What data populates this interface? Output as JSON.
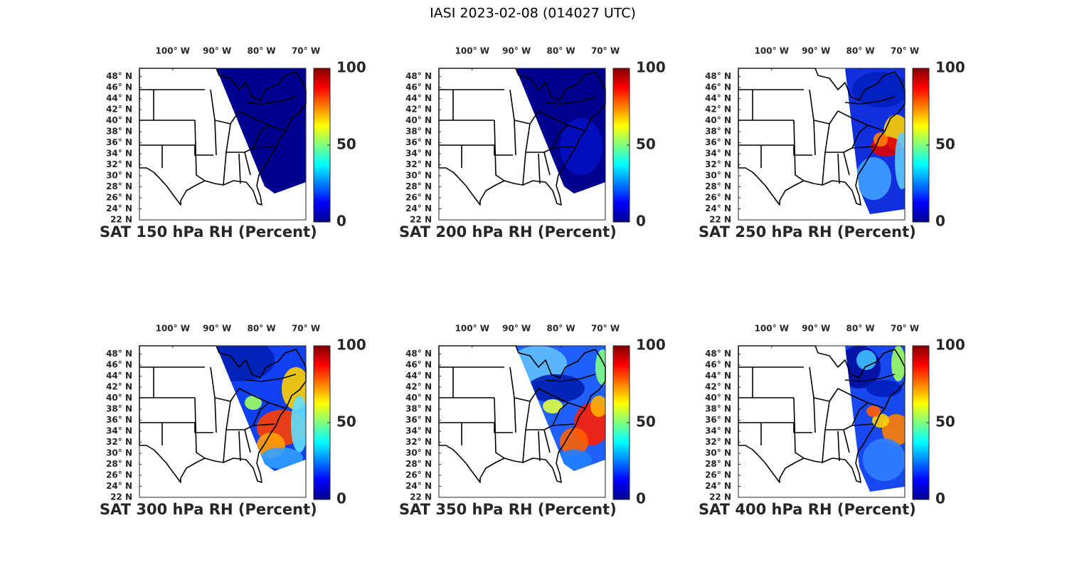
{
  "title": "IASI 2023-02-08 (014027 UTC)",
  "panels": [
    {
      "title": "SAT 150 hPa RH (Percent)"
    },
    {
      "title": "SAT 200 hPa RH (Percent)"
    },
    {
      "title": "SAT 250 hPa RH (Percent)"
    },
    {
      "title": "SAT 300 hPa RH (Percent)"
    },
    {
      "title": "SAT 350 hPa RH (Percent)"
    },
    {
      "title": "SAT 400 hPa RH (Percent)"
    }
  ],
  "lonlim": [
    -107.5,
    -70
  ],
  "latlim": [
    22,
    49.5
  ],
  "lon_ticks": [
    {
      "value": -100,
      "label": "100° W"
    },
    {
      "value": -90,
      "label": "90° W"
    },
    {
      "value": -80,
      "label": "80° W"
    },
    {
      "value": -70,
      "label": "70° W"
    }
  ],
  "lat_ticks": [
    {
      "value": 48,
      "label": "48° N"
    },
    {
      "value": 46,
      "label": "46° N"
    },
    {
      "value": 44,
      "label": "44° N"
    },
    {
      "value": 42,
      "label": "42° N"
    },
    {
      "value": 40,
      "label": "40° N"
    },
    {
      "value": 38,
      "label": "38° N"
    },
    {
      "value": 36,
      "label": "36° N"
    },
    {
      "value": 34,
      "label": "34° N"
    },
    {
      "value": 32,
      "label": "32° N"
    },
    {
      "value": 30,
      "label": "30° N"
    },
    {
      "value": 28,
      "label": "28° N"
    },
    {
      "value": 26,
      "label": "26° N"
    },
    {
      "value": 24,
      "label": "24° N"
    },
    {
      "value": 22,
      "label": "22 N"
    }
  ],
  "colorbar": {
    "lim": [
      0,
      100
    ],
    "ticks": [
      0,
      50,
      100
    ]
  }
}
